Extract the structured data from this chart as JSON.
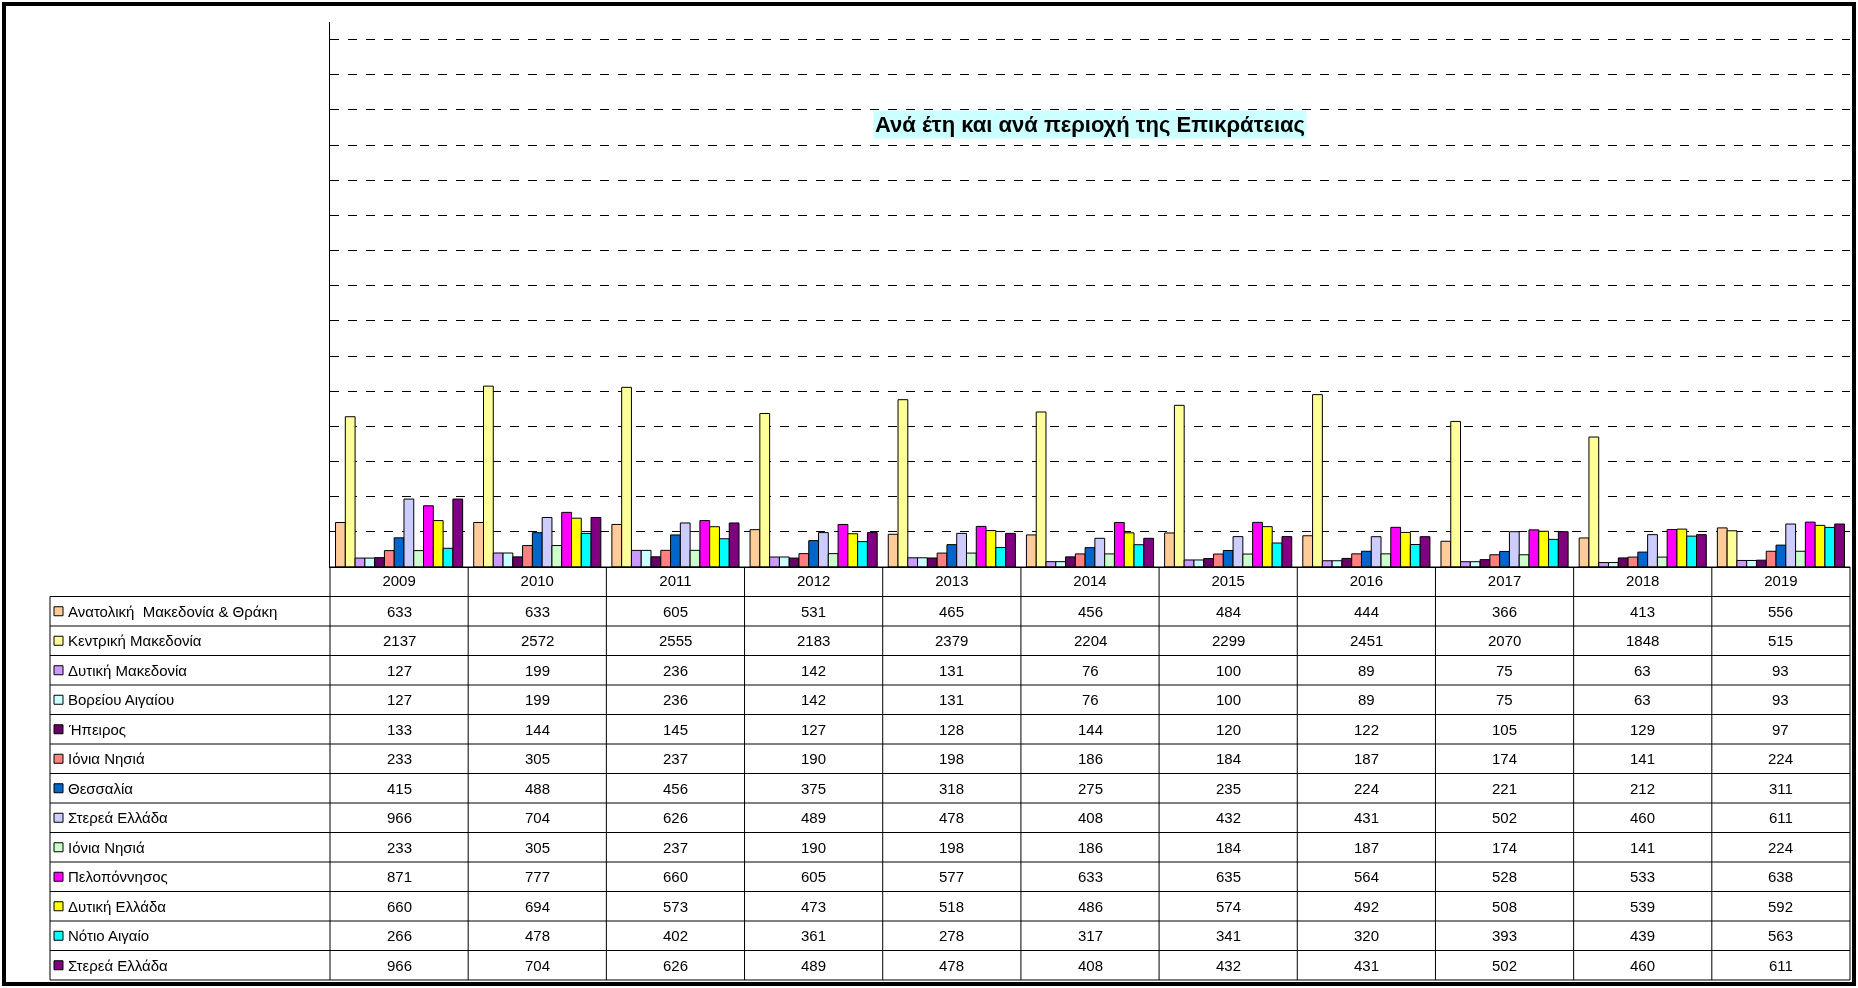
{
  "chart_data": {
    "type": "bar",
    "title": "Ανά έτη και ανά περιοχή της Επικράτειας",
    "categories": [
      "2009",
      "2010",
      "2011",
      "2012",
      "2013",
      "2014",
      "2015",
      "2016",
      "2017",
      "2018",
      "2019"
    ],
    "series": [
      {
        "name": "Ανατολική  Μακεδονία & Θράκη",
        "color": "#ffcc99",
        "values": [
          633,
          633,
          605,
          531,
          465,
          456,
          484,
          444,
          366,
          413,
          556
        ]
      },
      {
        "name": "Κεντρική Μακεδονία",
        "color": "#ffff99",
        "values": [
          2137,
          2572,
          2555,
          2183,
          2379,
          2204,
          2299,
          2451,
          2070,
          1848,
          515
        ]
      },
      {
        "name": "Δυτική Μακεδονία",
        "color": "#cc99ff",
        "values": [
          127,
          199,
          236,
          142,
          131,
          76,
          100,
          89,
          75,
          63,
          93
        ]
      },
      {
        "name": "Βορείου Αιγαίου",
        "color": "#ccffff",
        "values": [
          127,
          199,
          236,
          142,
          131,
          76,
          100,
          89,
          75,
          63,
          93
        ]
      },
      {
        "name": "Ήπειρος",
        "color": "#660066",
        "values": [
          133,
          144,
          145,
          127,
          128,
          144,
          120,
          122,
          105,
          129,
          97
        ]
      },
      {
        "name": "Ιόνια Νησιά",
        "color": "#ff8080",
        "values": [
          233,
          305,
          237,
          190,
          198,
          186,
          184,
          187,
          174,
          141,
          224
        ]
      },
      {
        "name": "Θεσσαλία",
        "color": "#0066cc",
        "values": [
          415,
          488,
          456,
          375,
          318,
          275,
          235,
          224,
          221,
          212,
          311
        ]
      },
      {
        "name": "Στερεά Ελλάδα",
        "color": "#ccccff",
        "values": [
          966,
          704,
          626,
          489,
          478,
          408,
          432,
          431,
          502,
          460,
          611
        ]
      },
      {
        "name": "Ιόνια Νησιά",
        "color": "#ccffcc",
        "values": [
          233,
          305,
          237,
          190,
          198,
          186,
          184,
          187,
          174,
          141,
          224
        ]
      },
      {
        "name": "Πελοπόννησος",
        "color": "#ff00ff",
        "values": [
          871,
          777,
          660,
          605,
          577,
          633,
          635,
          564,
          528,
          533,
          638
        ]
      },
      {
        "name": "Δυτική Ελλάδα",
        "color": "#ffff00",
        "values": [
          660,
          694,
          573,
          473,
          518,
          486,
          574,
          492,
          508,
          539,
          592
        ]
      },
      {
        "name": "Νότιο Αιγαίο",
        "color": "#00ffff",
        "values": [
          266,
          478,
          402,
          361,
          278,
          317,
          341,
          320,
          393,
          439,
          563
        ]
      },
      {
        "name": "Στερεά Ελλάδα",
        "color": "#800080",
        "values": [
          966,
          704,
          626,
          489,
          478,
          408,
          432,
          431,
          502,
          460,
          611
        ]
      }
    ],
    "ylim": [
      0,
      7750
    ],
    "yticks": [
      {
        "value": 0,
        "label": null
      },
      {
        "value": 500,
        "label": null
      },
      {
        "value": 1000,
        "label": null
      },
      {
        "value": 1500,
        "label": null
      },
      {
        "value": 2000,
        "label": null
      },
      {
        "value": 2500,
        "label": null
      },
      {
        "value": 3000,
        "label": null
      },
      {
        "value": 3500,
        "label": null
      },
      {
        "value": 4000,
        "label": null
      },
      {
        "value": 4500,
        "label": null
      },
      {
        "value": 5000,
        "label": null
      },
      {
        "value": 5500,
        "label": null
      },
      {
        "value": 6000,
        "label": null
      },
      {
        "value": 6500,
        "label": null
      },
      {
        "value": 7000,
        "label": null
      },
      {
        "value": 7500,
        "label": null
      }
    ],
    "grid": "y",
    "legend": "bottom left",
    "tick_labels": "x",
    "data_labels": true
  }
}
